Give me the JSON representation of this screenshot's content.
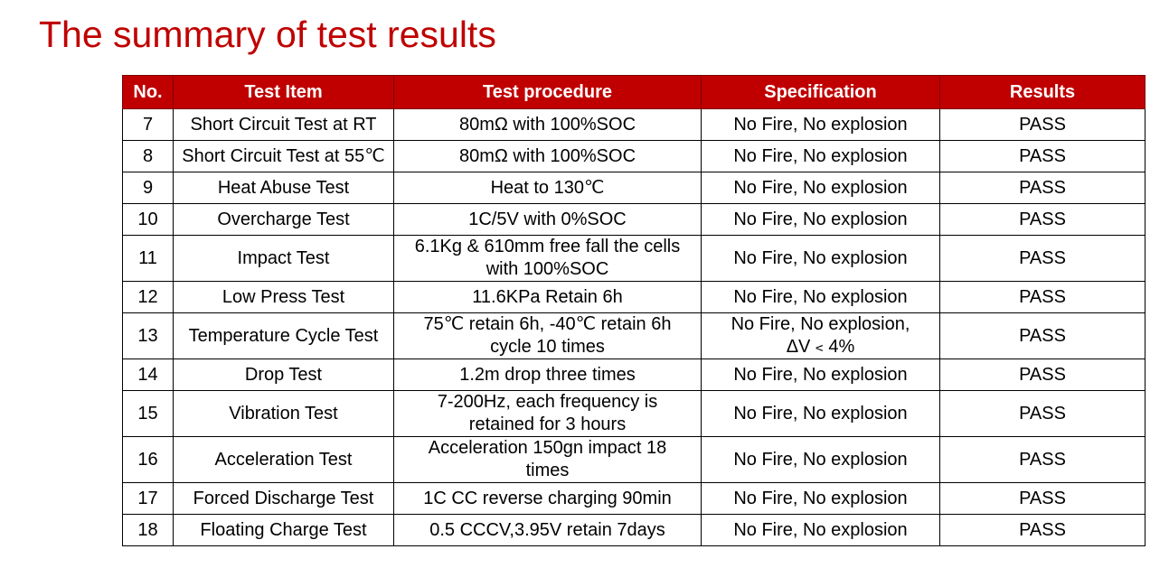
{
  "title": "The summary of test results",
  "table": {
    "headers": [
      "No.",
      "Test Item",
      "Test procedure",
      "Specification",
      "Results"
    ],
    "rows": [
      {
        "no": "7",
        "item": "Short Circuit Test at RT",
        "procedure": "80mΩ with 100%SOC",
        "specification": "No Fire, No explosion",
        "result": "PASS"
      },
      {
        "no": "8",
        "item": "Short Circuit Test at 55℃",
        "procedure": "80mΩ with 100%SOC",
        "specification": "No Fire, No explosion",
        "result": "PASS"
      },
      {
        "no": "9",
        "item": "Heat Abuse Test",
        "procedure": "Heat to 130℃",
        "specification": "No Fire, No explosion",
        "result": "PASS"
      },
      {
        "no": "10",
        "item": "Overcharge Test",
        "procedure": "1C/5V with 0%SOC",
        "specification": "No Fire, No explosion",
        "result": "PASS"
      },
      {
        "no": "11",
        "item": "Impact Test",
        "procedure": "6.1Kg & 610mm free fall the cells\nwith 100%SOC",
        "specification": "No Fire, No explosion",
        "result": "PASS"
      },
      {
        "no": "12",
        "item": "Low Press Test",
        "procedure": "11.6KPa Retain 6h",
        "specification": "No Fire, No explosion",
        "result": "PASS"
      },
      {
        "no": "13",
        "item": "Temperature Cycle Test",
        "procedure": "75℃ retain 6h, -40℃ retain 6h\ncycle 10 times",
        "specification": "No Fire, No explosion,\nΔV﹤4%",
        "result": "PASS"
      },
      {
        "no": "14",
        "item": "Drop Test",
        "procedure": "1.2m drop three times",
        "specification": "No Fire, No explosion",
        "result": "PASS"
      },
      {
        "no": "15",
        "item": "Vibration Test",
        "procedure": "7-200Hz, each frequency is\nretained for 3 hours",
        "specification": "No Fire, No explosion",
        "result": "PASS"
      },
      {
        "no": "16",
        "item": "Acceleration Test",
        "procedure": "Acceleration 150gn impact 18\ntimes",
        "specification": "No Fire, No explosion",
        "result": "PASS"
      },
      {
        "no": "17",
        "item": "Forced Discharge Test",
        "procedure": "1C CC reverse charging 90min",
        "specification": "No Fire, No explosion",
        "result": "PASS"
      },
      {
        "no": "18",
        "item": "Floating Charge Test",
        "procedure": "0.5 CCCV,3.95V retain 7days",
        "specification": "No Fire, No explosion",
        "result": "PASS"
      }
    ]
  },
  "colors": {
    "accent": "#c00000",
    "header_text": "#ffffff",
    "border": "#000000"
  }
}
